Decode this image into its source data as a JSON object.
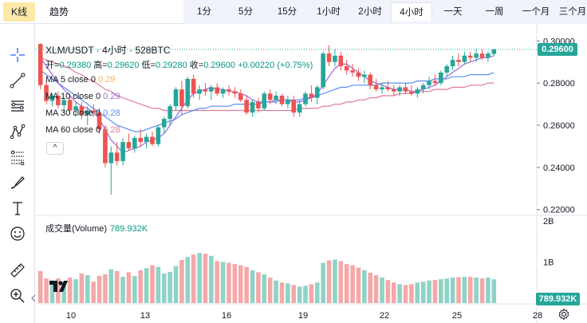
{
  "tabs": {
    "kline": "K线",
    "trend": "趋势"
  },
  "timeframes": [
    "1分",
    "5分",
    "15分",
    "1小时",
    "2小时",
    "4小时",
    "一天",
    "一周",
    "一个月",
    "三个月"
  ],
  "active_timeframe": "4小时",
  "legend": {
    "title": "XLM/USDT · 4小时 · 528BTC",
    "open_label": "开=",
    "open": "0.29380",
    "high_label": "高=",
    "high": "0.29620",
    "low_label": "低=",
    "low": "0.29280",
    "close_label": "收=",
    "close": "0.29600",
    "change": "+0.00220 (+0.75%)",
    "collapse_glyph": "^"
  },
  "moving_averages": [
    {
      "label": "MA 5 close 0",
      "value": "0.29",
      "color": "#f7b35a"
    },
    {
      "label": "MA 10 close 0",
      "value": "0.29",
      "color": "#9c6ade"
    },
    {
      "label": "MA 30 close 0",
      "value": "0.28",
      "color": "#5b8def"
    },
    {
      "label": "MA 60 close 0",
      "value": "0.28",
      "color": "#e07a98"
    }
  ],
  "volume_legend": {
    "label": "成交量(Volume)",
    "value": "789.932K"
  },
  "price_axis": [
    "0.30000",
    "0.28000",
    "0.26000",
    "0.24000",
    "0.22000"
  ],
  "price_current": "0.29600",
  "volume_axis": [
    "2B",
    "1B"
  ],
  "volume_current": "789.932K",
  "date_axis": [
    "10",
    "13",
    "16",
    "19",
    "22",
    "25",
    "28"
  ],
  "colors": {
    "up": "#26a69a",
    "down": "#ef5350",
    "up_vol": "#8fd3c6",
    "down_vol": "#f4a8a8",
    "accent": "#fde9a8"
  },
  "icons": [
    "crosshair-icon",
    "trendline-icon",
    "horizontal-lines-icon",
    "pattern-icon",
    "fib-icon",
    "brush-icon",
    "text-icon",
    "emoji-icon",
    "ruler-icon",
    "zoom-in-icon"
  ],
  "chart_data": {
    "type": "candlestick",
    "x_ticks": [
      "10",
      "13",
      "16",
      "19",
      "22",
      "25",
      "28"
    ],
    "ylim": [
      0.218,
      0.302
    ],
    "candles": [
      [
        0.2985,
        0.299,
        0.277,
        0.279
      ],
      [
        0.279,
        0.281,
        0.27,
        0.2715
      ],
      [
        0.2715,
        0.275,
        0.269,
        0.274
      ],
      [
        0.274,
        0.276,
        0.268,
        0.2695
      ],
      [
        0.2695,
        0.273,
        0.266,
        0.272
      ],
      [
        0.272,
        0.274,
        0.265,
        0.267
      ],
      [
        0.267,
        0.271,
        0.264,
        0.269
      ],
      [
        0.269,
        0.271,
        0.263,
        0.265
      ],
      [
        0.265,
        0.269,
        0.26,
        0.267
      ],
      [
        0.267,
        0.27,
        0.264,
        0.266
      ],
      [
        0.266,
        0.268,
        0.256,
        0.258
      ],
      [
        0.258,
        0.26,
        0.24,
        0.242
      ],
      [
        0.242,
        0.25,
        0.227,
        0.247
      ],
      [
        0.247,
        0.252,
        0.241,
        0.243
      ],
      [
        0.243,
        0.254,
        0.241,
        0.252
      ],
      [
        0.252,
        0.256,
        0.248,
        0.249
      ],
      [
        0.249,
        0.255,
        0.247,
        0.254
      ],
      [
        0.254,
        0.258,
        0.25,
        0.252
      ],
      [
        0.252,
        0.256,
        0.249,
        0.2545
      ],
      [
        0.2545,
        0.257,
        0.25,
        0.251
      ],
      [
        0.251,
        0.26,
        0.25,
        0.259
      ],
      [
        0.259,
        0.264,
        0.256,
        0.263
      ],
      [
        0.263,
        0.27,
        0.26,
        0.269
      ],
      [
        0.269,
        0.278,
        0.267,
        0.277
      ],
      [
        0.277,
        0.281,
        0.265,
        0.269
      ],
      [
        0.269,
        0.283,
        0.268,
        0.282
      ],
      [
        0.282,
        0.284,
        0.273,
        0.275
      ],
      [
        0.275,
        0.279,
        0.272,
        0.277
      ],
      [
        0.277,
        0.28,
        0.274,
        0.276
      ],
      [
        0.276,
        0.279,
        0.272,
        0.278
      ],
      [
        0.278,
        0.28,
        0.274,
        0.275
      ],
      [
        0.275,
        0.278,
        0.273,
        0.277
      ],
      [
        0.277,
        0.279,
        0.274,
        0.276
      ],
      [
        0.276,
        0.278,
        0.273,
        0.275
      ],
      [
        0.275,
        0.277,
        0.271,
        0.272
      ],
      [
        0.272,
        0.274,
        0.265,
        0.266
      ],
      [
        0.266,
        0.272,
        0.264,
        0.271
      ],
      [
        0.271,
        0.273,
        0.266,
        0.268
      ],
      [
        0.268,
        0.276,
        0.267,
        0.275
      ],
      [
        0.275,
        0.277,
        0.27,
        0.272
      ],
      [
        0.272,
        0.276,
        0.27,
        0.274
      ],
      [
        0.274,
        0.275,
        0.269,
        0.27
      ],
      [
        0.27,
        0.274,
        0.268,
        0.272
      ],
      [
        0.272,
        0.274,
        0.264,
        0.266
      ],
      [
        0.266,
        0.272,
        0.264,
        0.27
      ],
      [
        0.27,
        0.276,
        0.269,
        0.275
      ],
      [
        0.275,
        0.279,
        0.271,
        0.273
      ],
      [
        0.273,
        0.279,
        0.27,
        0.278
      ],
      [
        0.278,
        0.295,
        0.277,
        0.294
      ],
      [
        0.294,
        0.298,
        0.288,
        0.29
      ],
      [
        0.29,
        0.296,
        0.288,
        0.293
      ],
      [
        0.293,
        0.295,
        0.286,
        0.288
      ],
      [
        0.288,
        0.291,
        0.284,
        0.286
      ],
      [
        0.286,
        0.289,
        0.283,
        0.285
      ],
      [
        0.285,
        0.287,
        0.281,
        0.283
      ],
      [
        0.283,
        0.286,
        0.28,
        0.284
      ],
      [
        0.284,
        0.285,
        0.277,
        0.279
      ],
      [
        0.279,
        0.282,
        0.276,
        0.277
      ],
      [
        0.277,
        0.28,
        0.275,
        0.278
      ],
      [
        0.278,
        0.281,
        0.276,
        0.277
      ],
      [
        0.277,
        0.279,
        0.274,
        0.276
      ],
      [
        0.276,
        0.279,
        0.274,
        0.278
      ],
      [
        0.278,
        0.28,
        0.275,
        0.276
      ],
      [
        0.276,
        0.279,
        0.274,
        0.275
      ],
      [
        0.275,
        0.278,
        0.273,
        0.277
      ],
      [
        0.277,
        0.28,
        0.275,
        0.279
      ],
      [
        0.279,
        0.283,
        0.277,
        0.281
      ],
      [
        0.281,
        0.284,
        0.279,
        0.28
      ],
      [
        0.28,
        0.286,
        0.279,
        0.285
      ],
      [
        0.285,
        0.289,
        0.283,
        0.288
      ],
      [
        0.288,
        0.293,
        0.286,
        0.291
      ],
      [
        0.291,
        0.294,
        0.288,
        0.29
      ],
      [
        0.29,
        0.295,
        0.289,
        0.293
      ],
      [
        0.293,
        0.295,
        0.29,
        0.292
      ],
      [
        0.292,
        0.296,
        0.29,
        0.294
      ],
      [
        0.294,
        0.296,
        0.291,
        0.292
      ],
      [
        0.292,
        0.295,
        0.29,
        0.294
      ],
      [
        0.2938,
        0.2962,
        0.2928,
        0.296
      ]
    ],
    "volumes": [
      0.78,
      0.6,
      0.55,
      0.6,
      0.48,
      0.62,
      0.58,
      0.72,
      0.68,
      0.52,
      0.66,
      0.7,
      0.82,
      0.78,
      0.64,
      0.75,
      0.66,
      0.8,
      0.85,
      0.92,
      0.88,
      0.72,
      0.76,
      0.9,
      1.05,
      1.12,
      1.18,
      1.22,
      1.2,
      1.15,
      1.02,
      1.0,
      0.98,
      0.95,
      0.92,
      0.88,
      0.8,
      0.75,
      0.7,
      0.62,
      0.55,
      0.5,
      0.48,
      0.44,
      0.4,
      0.42,
      0.46,
      0.5,
      0.98,
      1.04,
      1.06,
      1.02,
      0.95,
      0.92,
      0.86,
      0.8,
      0.74,
      0.68,
      0.62,
      0.56,
      0.5,
      0.46,
      0.44,
      0.46,
      0.5,
      0.52,
      0.55,
      0.56,
      0.58,
      0.6,
      0.62,
      0.63,
      0.64,
      0.64,
      0.62,
      0.6,
      0.62,
      0.58
    ],
    "ma5": [
      0.292,
      0.288,
      0.284,
      0.28,
      0.277,
      0.274,
      0.271,
      0.269,
      0.268,
      0.266,
      0.263,
      0.258,
      0.253,
      0.25,
      0.247,
      0.248,
      0.249,
      0.25,
      0.252,
      0.253,
      0.254,
      0.256,
      0.26,
      0.264,
      0.268,
      0.272,
      0.275,
      0.276,
      0.277,
      0.278,
      0.277,
      0.277,
      0.276,
      0.276,
      0.275,
      0.274,
      0.272,
      0.271,
      0.271,
      0.271,
      0.272,
      0.272,
      0.272,
      0.271,
      0.271,
      0.272,
      0.273,
      0.275,
      0.279,
      0.283,
      0.287,
      0.289,
      0.289,
      0.287,
      0.285,
      0.283,
      0.281,
      0.28,
      0.279,
      0.278,
      0.277,
      0.277,
      0.277,
      0.276,
      0.276,
      0.277,
      0.278,
      0.279,
      0.281,
      0.283,
      0.285,
      0.287,
      0.289,
      0.29,
      0.291,
      0.292,
      0.292,
      0.293
    ],
    "ma30": [
      0.286,
      0.284,
      0.282,
      0.28,
      0.278,
      0.276,
      0.274,
      0.272,
      0.27,
      0.268,
      0.266,
      0.264,
      0.262,
      0.26,
      0.259,
      0.258,
      0.257,
      0.257,
      0.258,
      0.259,
      0.26,
      0.261,
      0.262,
      0.263,
      0.265,
      0.266,
      0.267,
      0.268,
      0.268,
      0.269,
      0.269,
      0.269,
      0.269,
      0.27,
      0.27,
      0.27,
      0.27,
      0.27,
      0.271,
      0.271,
      0.271,
      0.272,
      0.272,
      0.272,
      0.272,
      0.273,
      0.273,
      0.274,
      0.275,
      0.276,
      0.277,
      0.278,
      0.278,
      0.279,
      0.279,
      0.279,
      0.279,
      0.279,
      0.28,
      0.28,
      0.28,
      0.28,
      0.28,
      0.28,
      0.281,
      0.281,
      0.281,
      0.282,
      0.282,
      0.282,
      0.283,
      0.283,
      0.283,
      0.284,
      0.284,
      0.284,
      0.284,
      0.285
    ],
    "ma60": [
      0.292,
      0.291,
      0.29,
      0.289,
      0.288,
      0.287,
      0.285,
      0.284,
      0.282,
      0.281,
      0.279,
      0.277,
      0.276,
      0.274,
      0.273,
      0.272,
      0.271,
      0.27,
      0.269,
      0.268,
      0.268,
      0.267,
      0.267,
      0.267,
      0.267,
      0.267,
      0.267,
      0.267,
      0.267,
      0.267,
      0.267,
      0.267,
      0.267,
      0.267,
      0.267,
      0.267,
      0.267,
      0.267,
      0.267,
      0.267,
      0.267,
      0.267,
      0.267,
      0.267,
      0.268,
      0.268,
      0.268,
      0.268,
      0.269,
      0.269,
      0.27,
      0.27,
      0.271,
      0.271,
      0.272,
      0.272,
      0.273,
      0.273,
      0.274,
      0.274,
      0.274,
      0.275,
      0.275,
      0.275,
      0.276,
      0.276,
      0.276,
      0.277,
      0.277,
      0.277,
      0.278,
      0.278,
      0.278,
      0.279,
      0.279,
      0.279,
      0.28,
      0.28
    ]
  }
}
